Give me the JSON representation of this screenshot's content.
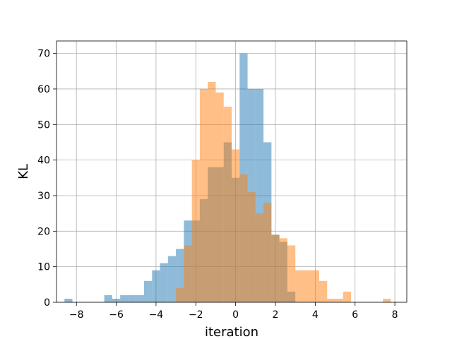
{
  "chart_data": {
    "type": "bar",
    "title": "",
    "xlabel": "iteration",
    "ylabel": "KL",
    "xlim": [
      -9.0,
      8.6
    ],
    "ylim": [
      0,
      73.5
    ],
    "xticks": [
      -8,
      -6,
      -4,
      -2,
      0,
      2,
      4,
      6,
      8
    ],
    "yticks": [
      0,
      10,
      20,
      30,
      40,
      50,
      60,
      70
    ],
    "grid": true,
    "legend": "none",
    "series": [
      {
        "color": "#1f77b4",
        "opacity": 0.5,
        "bins": [
          {
            "x0": -8.6,
            "x1": -8.2,
            "y": 1
          },
          {
            "x0": -6.6,
            "x1": -6.2,
            "y": 2
          },
          {
            "x0": -6.2,
            "x1": -5.8,
            "y": 1
          },
          {
            "x0": -5.8,
            "x1": -5.4,
            "y": 2
          },
          {
            "x0": -5.4,
            "x1": -5.0,
            "y": 2
          },
          {
            "x0": -5.0,
            "x1": -4.6,
            "y": 2
          },
          {
            "x0": -4.6,
            "x1": -4.2,
            "y": 6
          },
          {
            "x0": -4.2,
            "x1": -3.8,
            "y": 9
          },
          {
            "x0": -3.8,
            "x1": -3.4,
            "y": 11
          },
          {
            "x0": -3.4,
            "x1": -3.0,
            "y": 13
          },
          {
            "x0": -3.0,
            "x1": -2.6,
            "y": 15
          },
          {
            "x0": -2.6,
            "x1": -2.2,
            "y": 23
          },
          {
            "x0": -2.2,
            "x1": -1.8,
            "y": 23
          },
          {
            "x0": -1.8,
            "x1": -1.4,
            "y": 29
          },
          {
            "x0": -1.4,
            "x1": -1.0,
            "y": 38
          },
          {
            "x0": -1.0,
            "x1": -0.6,
            "y": 38
          },
          {
            "x0": -0.6,
            "x1": -0.2,
            "y": 45
          },
          {
            "x0": -0.2,
            "x1": 0.2,
            "y": 35
          },
          {
            "x0": 0.2,
            "x1": 0.6,
            "y": 70
          },
          {
            "x0": 0.6,
            "x1": 1.0,
            "y": 60
          },
          {
            "x0": 1.0,
            "x1": 1.4,
            "y": 60
          },
          {
            "x0": 1.4,
            "x1": 1.8,
            "y": 45
          },
          {
            "x0": 1.8,
            "x1": 2.2,
            "y": 19
          },
          {
            "x0": 2.2,
            "x1": 2.6,
            "y": 17
          },
          {
            "x0": 2.6,
            "x1": 3.0,
            "y": 3
          }
        ]
      },
      {
        "color": "#ff7f0e",
        "opacity": 0.5,
        "bins": [
          {
            "x0": -3.0,
            "x1": -2.6,
            "y": 4
          },
          {
            "x0": -2.6,
            "x1": -2.2,
            "y": 16
          },
          {
            "x0": -2.2,
            "x1": -1.8,
            "y": 40
          },
          {
            "x0": -1.8,
            "x1": -1.4,
            "y": 60
          },
          {
            "x0": -1.4,
            "x1": -1.0,
            "y": 62
          },
          {
            "x0": -1.0,
            "x1": -0.6,
            "y": 59
          },
          {
            "x0": -0.6,
            "x1": -0.2,
            "y": 55
          },
          {
            "x0": -0.2,
            "x1": 0.2,
            "y": 43
          },
          {
            "x0": 0.2,
            "x1": 0.6,
            "y": 36
          },
          {
            "x0": 0.6,
            "x1": 1.0,
            "y": 31
          },
          {
            "x0": 1.0,
            "x1": 1.4,
            "y": 25
          },
          {
            "x0": 1.4,
            "x1": 1.8,
            "y": 28
          },
          {
            "x0": 1.8,
            "x1": 2.2,
            "y": 19
          },
          {
            "x0": 2.2,
            "x1": 2.6,
            "y": 18
          },
          {
            "x0": 2.6,
            "x1": 3.0,
            "y": 16
          },
          {
            "x0": 3.0,
            "x1": 3.4,
            "y": 9
          },
          {
            "x0": 3.4,
            "x1": 3.8,
            "y": 9
          },
          {
            "x0": 3.8,
            "x1": 4.2,
            "y": 9
          },
          {
            "x0": 4.2,
            "x1": 4.6,
            "y": 6
          },
          {
            "x0": 4.6,
            "x1": 5.0,
            "y": 1
          },
          {
            "x0": 5.0,
            "x1": 5.4,
            "y": 1
          },
          {
            "x0": 5.4,
            "x1": 5.8,
            "y": 3
          },
          {
            "x0": 7.4,
            "x1": 7.8,
            "y": 1
          }
        ]
      }
    ]
  }
}
